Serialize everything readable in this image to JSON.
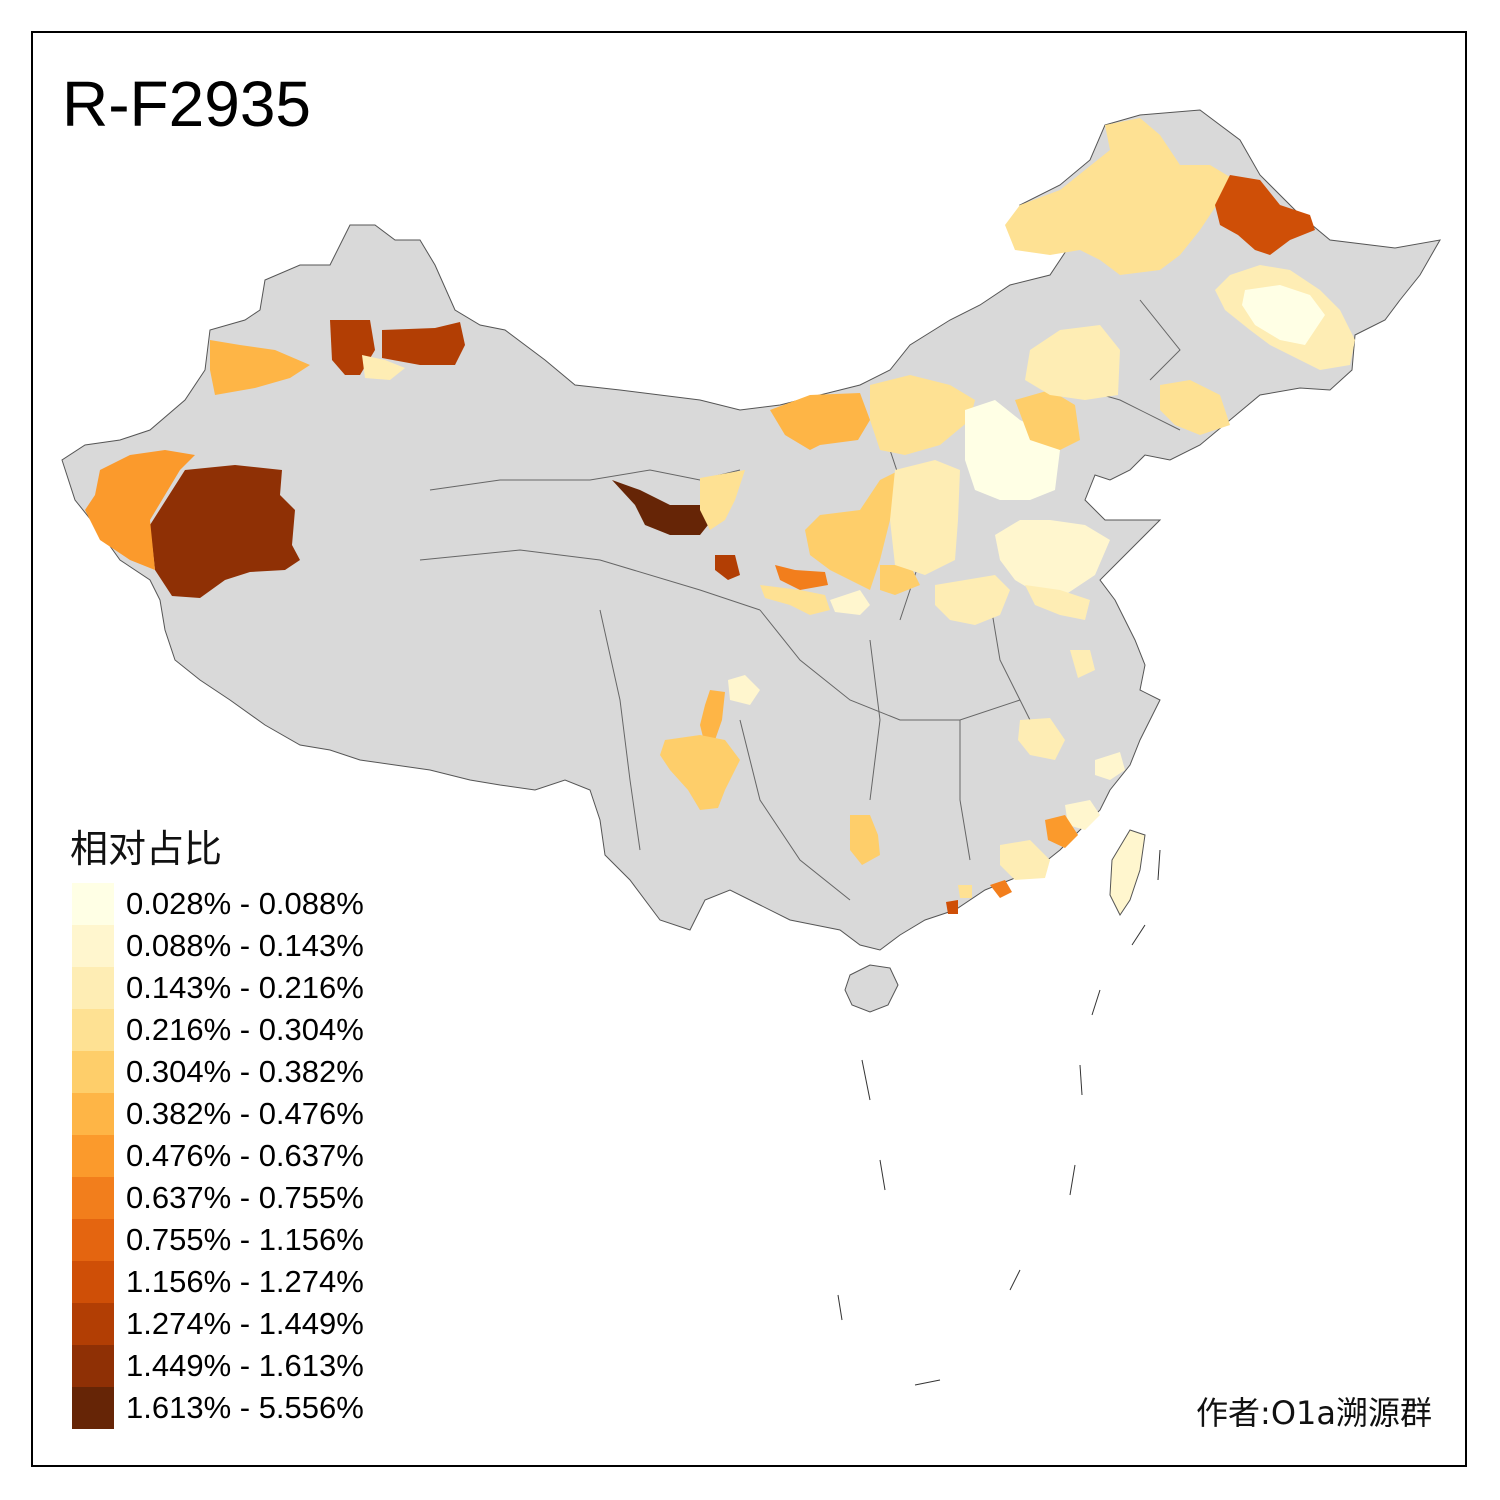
{
  "title": "R-F2935",
  "legend": {
    "title": "相对占比",
    "items": [
      {
        "label": "0.028% - 0.088%",
        "color": "#FFFFE5"
      },
      {
        "label": "0.088% - 0.143%",
        "color": "#FFF6CE"
      },
      {
        "label": "0.143% - 0.216%",
        "color": "#FEEDB4"
      },
      {
        "label": "0.216% - 0.304%",
        "color": "#FEE193"
      },
      {
        "label": "0.304% - 0.382%",
        "color": "#FECE6A"
      },
      {
        "label": "0.382% - 0.476%",
        "color": "#FEB546"
      },
      {
        "label": "0.476% - 0.637%",
        "color": "#FB9A2C"
      },
      {
        "label": "0.637% - 0.755%",
        "color": "#F27E1C"
      },
      {
        "label": "0.755% - 1.156%",
        "color": "#E46510"
      },
      {
        "label": "1.156% - 1.274%",
        "color": "#CF4F07"
      },
      {
        "label": "1.274% - 1.449%",
        "color": "#B23E04"
      },
      {
        "label": "1.449% - 1.613%",
        "color": "#8F3005"
      },
      {
        "label": "1.613% - 5.556%",
        "color": "#662506"
      }
    ]
  },
  "credit": "作者:O1a溯源群",
  "colors": {
    "no_data": "#D9D9D9",
    "border": "#555555"
  }
}
